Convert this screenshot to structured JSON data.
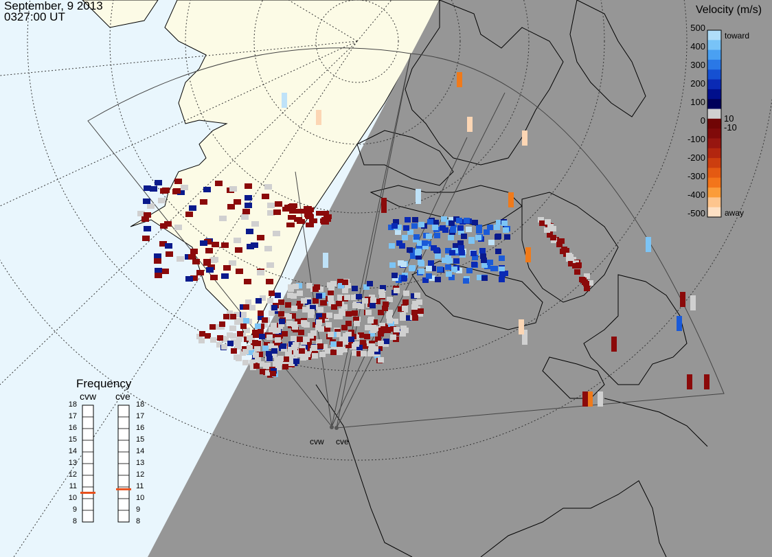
{
  "header": {
    "date": "September, 9 2013",
    "time": "0327:00 UT"
  },
  "colorbar": {
    "title": "Velocity (m/s)",
    "ticks": [
      "500",
      "400",
      "300",
      "200",
      "100",
      "10",
      "0",
      "-10",
      "-100",
      "-200",
      "-300",
      "-400",
      "-500"
    ],
    "toward_label": "toward",
    "away_label": "away",
    "colors": [
      "#fde0c4",
      "#fdc58e",
      "#fb9c3a",
      "#f3751a",
      "#e45a12",
      "#cc3e0f",
      "#b2260f",
      "#971610",
      "#800a0a",
      "#700505",
      "#d0d0d0",
      "#00005a",
      "#000f8c",
      "#0a2ab4",
      "#1550d2",
      "#2a78e6",
      "#4aa0f2",
      "#78c3f7",
      "#b0def9"
    ]
  },
  "frequency": {
    "title": "Frequency",
    "radars": [
      {
        "name": "cvw",
        "value": 10.5
      },
      {
        "name": "cve",
        "value": 10.8
      }
    ],
    "scale": [
      "18",
      "17",
      "16",
      "15",
      "14",
      "13",
      "12",
      "11",
      "10",
      "9",
      "8"
    ],
    "indicator_color": "#e8501c"
  },
  "radar_labels": [
    "cvw",
    "cve"
  ],
  "colors": {
    "ocean": "#e9f6fd",
    "land": "#fcfbe6",
    "night": "#969696",
    "grid": "#555555"
  }
}
